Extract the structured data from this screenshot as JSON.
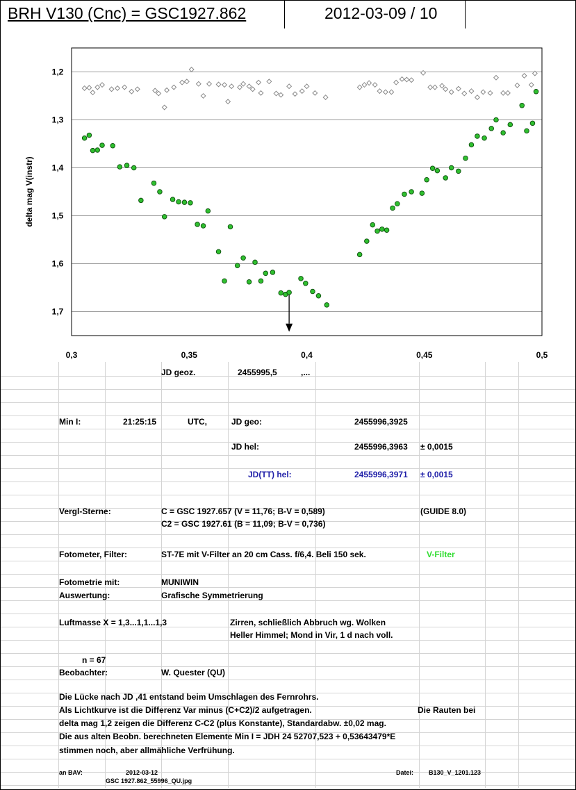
{
  "header": {
    "title": "BRH V130 (Cnc) = GSC1927.862",
    "date": "2012-03-09 / 10"
  },
  "chart_data": {
    "type": "scatter",
    "ylabel": "delta mag V(instr)",
    "xlim": [
      0.3,
      0.5
    ],
    "ylim": [
      1.75,
      1.15
    ],
    "y_inverted": true,
    "grid": "horizontal",
    "xticks": [
      "0,3",
      "0,35",
      "0,4",
      "0,45",
      "0,5"
    ],
    "xtick_values": [
      0.3,
      0.35,
      0.4,
      0.45,
      0.5
    ],
    "yticks": [
      "1,2",
      "1,3",
      "1,4",
      "1,5",
      "1,6",
      "1,7"
    ],
    "ytick_values": [
      1.2,
      1.3,
      1.4,
      1.5,
      1.6,
      1.7
    ],
    "minimum_marker_x": 0.3925,
    "series": [
      {
        "marker": "diamond-open",
        "color": "#888888",
        "points": [
          [
            0.3055,
            1.234
          ],
          [
            0.3075,
            1.233
          ],
          [
            0.309,
            1.243
          ],
          [
            0.311,
            1.232
          ],
          [
            0.313,
            1.227
          ],
          [
            0.317,
            1.236
          ],
          [
            0.3195,
            1.234
          ],
          [
            0.3225,
            1.232
          ],
          [
            0.3255,
            1.241
          ],
          [
            0.328,
            1.236
          ],
          [
            0.3355,
            1.239
          ],
          [
            0.337,
            1.245
          ],
          [
            0.3395,
            1.274
          ],
          [
            0.3405,
            1.238
          ],
          [
            0.3435,
            1.232
          ],
          [
            0.347,
            1.222
          ],
          [
            0.349,
            1.22
          ],
          [
            0.351,
            1.195
          ],
          [
            0.354,
            1.225
          ],
          [
            0.356,
            1.25
          ],
          [
            0.3585,
            1.225
          ],
          [
            0.3625,
            1.226
          ],
          [
            0.365,
            1.227
          ],
          [
            0.3665,
            1.262
          ],
          [
            0.368,
            1.23
          ],
          [
            0.3715,
            1.232
          ],
          [
            0.373,
            1.225
          ],
          [
            0.3755,
            1.23
          ],
          [
            0.377,
            1.236
          ],
          [
            0.3795,
            1.222
          ],
          [
            0.3805,
            1.244
          ],
          [
            0.384,
            1.22
          ],
          [
            0.387,
            1.245
          ],
          [
            0.389,
            1.248
          ],
          [
            0.3925,
            1.23
          ],
          [
            0.395,
            1.246
          ],
          [
            0.398,
            1.24
          ],
          [
            0.4,
            1.23
          ],
          [
            0.4035,
            1.244
          ],
          [
            0.408,
            1.253
          ],
          [
            0.4225,
            1.232
          ],
          [
            0.4245,
            1.227
          ],
          [
            0.4265,
            1.223
          ],
          [
            0.429,
            1.227
          ],
          [
            0.431,
            1.24
          ],
          [
            0.4335,
            1.242
          ],
          [
            0.436,
            1.242
          ],
          [
            0.438,
            1.222
          ],
          [
            0.4405,
            1.215
          ],
          [
            0.4425,
            1.216
          ],
          [
            0.4445,
            1.217
          ],
          [
            0.4495,
            1.202
          ],
          [
            0.4525,
            1.232
          ],
          [
            0.4545,
            1.232
          ],
          [
            0.4575,
            1.229
          ],
          [
            0.459,
            1.236
          ],
          [
            0.4615,
            1.242
          ],
          [
            0.4645,
            1.235
          ],
          [
            0.467,
            1.245
          ],
          [
            0.47,
            1.24
          ],
          [
            0.4725,
            1.253
          ],
          [
            0.475,
            1.242
          ],
          [
            0.478,
            1.244
          ],
          [
            0.4805,
            1.212
          ],
          [
            0.4835,
            1.244
          ],
          [
            0.4855,
            1.244
          ],
          [
            0.4895,
            1.228
          ],
          [
            0.4925,
            1.208
          ],
          [
            0.4955,
            1.227
          ],
          [
            0.497,
            1.203
          ]
        ]
      },
      {
        "marker": "circle",
        "color": "#2fbf2f",
        "points": [
          [
            0.3055,
            1.338
          ],
          [
            0.3075,
            1.332
          ],
          [
            0.309,
            1.364
          ],
          [
            0.311,
            1.363
          ],
          [
            0.313,
            1.353
          ],
          [
            0.3175,
            1.354
          ],
          [
            0.3205,
            1.398
          ],
          [
            0.3235,
            1.395
          ],
          [
            0.3265,
            1.4
          ],
          [
            0.3295,
            1.468
          ],
          [
            0.335,
            1.432
          ],
          [
            0.3375,
            1.45
          ],
          [
            0.3395,
            1.502
          ],
          [
            0.343,
            1.466
          ],
          [
            0.3455,
            1.471
          ],
          [
            0.348,
            1.472
          ],
          [
            0.3505,
            1.473
          ],
          [
            0.3535,
            1.518
          ],
          [
            0.356,
            1.521
          ],
          [
            0.358,
            1.49
          ],
          [
            0.3625,
            1.575
          ],
          [
            0.365,
            1.636
          ],
          [
            0.3675,
            1.523
          ],
          [
            0.3705,
            1.604
          ],
          [
            0.373,
            1.588
          ],
          [
            0.3755,
            1.638
          ],
          [
            0.378,
            1.597
          ],
          [
            0.3805,
            1.636
          ],
          [
            0.3825,
            1.62
          ],
          [
            0.3855,
            1.618
          ],
          [
            0.389,
            1.661
          ],
          [
            0.391,
            1.664
          ],
          [
            0.3925,
            1.66
          ],
          [
            0.3975,
            1.631
          ],
          [
            0.3995,
            1.641
          ],
          [
            0.4025,
            1.658
          ],
          [
            0.405,
            1.667
          ],
          [
            0.4085,
            1.686
          ],
          [
            0.4225,
            1.581
          ],
          [
            0.4255,
            1.553
          ],
          [
            0.428,
            1.519
          ],
          [
            0.43,
            1.532
          ],
          [
            0.432,
            1.528
          ],
          [
            0.434,
            1.53
          ],
          [
            0.4365,
            1.484
          ],
          [
            0.4385,
            1.475
          ],
          [
            0.4415,
            1.455
          ],
          [
            0.4445,
            1.45
          ],
          [
            0.449,
            1.453
          ],
          [
            0.451,
            1.425
          ],
          [
            0.4535,
            1.401
          ],
          [
            0.4555,
            1.406
          ],
          [
            0.459,
            1.421
          ],
          [
            0.4615,
            1.4
          ],
          [
            0.4645,
            1.407
          ],
          [
            0.4675,
            1.38
          ],
          [
            0.47,
            1.352
          ],
          [
            0.4725,
            1.334
          ],
          [
            0.4755,
            1.338
          ],
          [
            0.4785,
            1.318
          ],
          [
            0.4805,
            1.3
          ],
          [
            0.4835,
            1.327
          ],
          [
            0.4865,
            1.31
          ],
          [
            0.4915,
            1.27
          ],
          [
            0.4935,
            1.323
          ],
          [
            0.496,
            1.307
          ],
          [
            0.4975,
            1.241
          ]
        ]
      }
    ]
  },
  "sheet": {
    "jd_geoz_label": "JD geoz.",
    "jd_geoz_value": "2455995,5",
    "jd_geoz_suffix": ",...",
    "min_label": "Min I:",
    "min_time": "21:25:15",
    "min_utc": "UTC,",
    "jd_geo_label": "JD geo:",
    "jd_geo_value": "2455996,3925",
    "jd_hel_label": "JD hel:",
    "jd_hel_value": "2455996,3963",
    "jd_hel_err": "± 0,0015",
    "jdtt_label": "JD(TT) hel:",
    "jdtt_value": "2455996,3971",
    "jdtt_err": "± 0,0015",
    "vergl_label": "Vergl-Sterne:",
    "vergl_c": "C = GSC 1927.657 (V = 11,76; B-V = 0,589)",
    "vergl_guide": "(GUIDE 8.0)",
    "vergl_c2": "C2 = GSC 1927.61 (B = 11,09; B-V = 0,736)",
    "foto_label": "Fotometer, Filter:",
    "foto_value": "ST-7E mit V-Filter an 20 cm Cass. f/6,4. Beli 150 sek.",
    "foto_filter": "V-Filter",
    "fotometrie_label": "Fotometrie mit:",
    "fotometrie_value": "MUNIWIN",
    "auswertung_label": "Auswertung:",
    "auswertung_value": "Grafische Symmetrierung",
    "luft_label": "Luftmasse X = 1,3...1,1...1,3",
    "luft_note1": "Zirren, schließlich Abbruch wg. Wolken",
    "luft_note2": "Heller Himmel; Mond in Vir, 1 d nach voll.",
    "n": "n = 67",
    "beob_label": "Beobachter:",
    "beob_value": "W. Quester (QU)",
    "note1": "Die Lücke nach JD ,41 entstand beim Umschlagen des Fernrohrs.",
    "note2a": "Als Lichtkurve ist die Differenz Var minus (C+C2)/2 aufgetragen.",
    "note2b": "Die Rauten bei",
    "note3": "delta mag 1,2 zeigen die Differenz C-C2 (plus Konstante), Standardabw. ±0,02 mag.",
    "note4": "Die aus alten Beobn. berechneten Elemente Min I = JDH 24 52707,523 + 0,53643479*E",
    "note5": "stimmen noch, aber allmähliche Verfrühung.",
    "footer_an": "an BAV:",
    "footer_date": "2012-03-12",
    "footer_file": "GSC 1927.862_55996_QU.jpg",
    "footer_datei_label": "Datei:",
    "footer_datei": "B130_V_1201.123"
  }
}
